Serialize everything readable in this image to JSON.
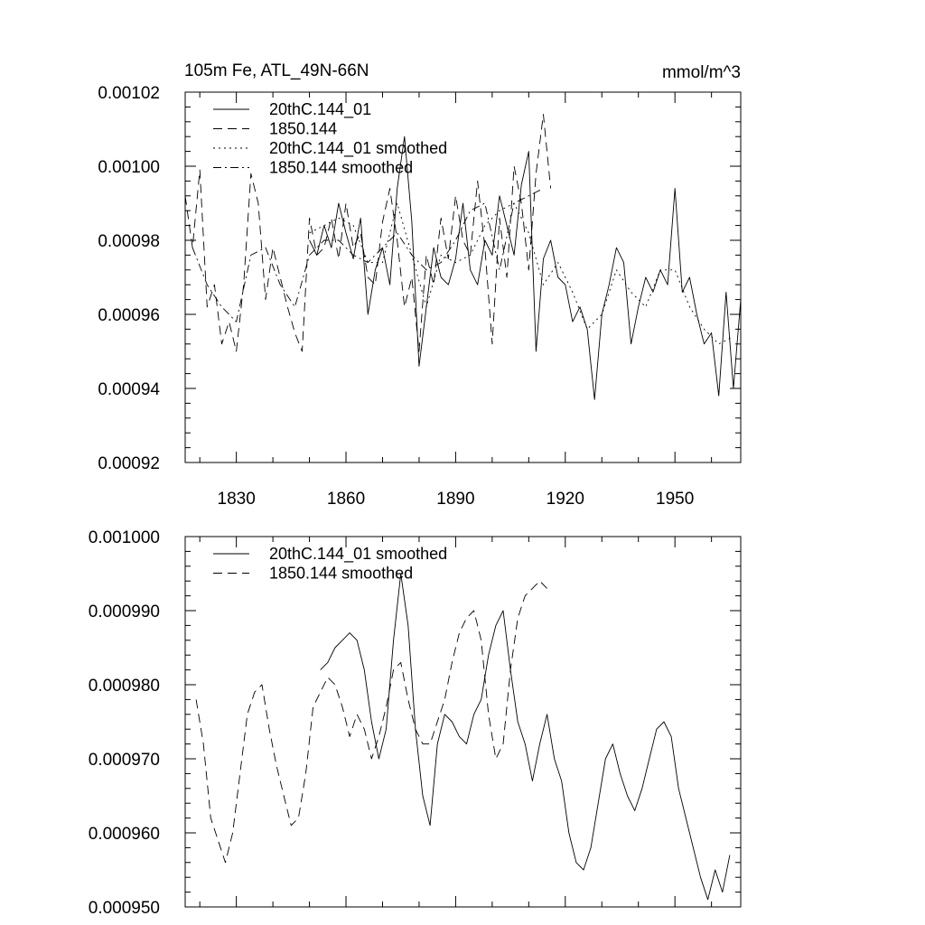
{
  "chart_data": [
    {
      "type": "line",
      "title": "105m Fe, ATL_49N-66N",
      "units_label": "mmol/m^3",
      "xlim": [
        1816,
        1968
      ],
      "ylim": [
        0.00092,
        0.00102
      ],
      "x_ticks": [
        1830,
        1860,
        1890,
        1920,
        1950
      ],
      "x_tick_labels": [
        "1830",
        "1860",
        "1890",
        "1920",
        "1950"
      ],
      "y_ticks": [
        0.00092,
        0.00094,
        0.00096,
        0.00098,
        0.001,
        0.00102
      ],
      "y_tick_labels": [
        "0.00092",
        "0.00094",
        "0.00096",
        "0.00098",
        "0.00100",
        "0.00102"
      ],
      "legend_position": "top-left",
      "series": [
        {
          "name": "20thC.144_01",
          "dash": "solid",
          "x": [
            1850,
            1852,
            1854,
            1856,
            1858,
            1860,
            1862,
            1864,
            1866,
            1868,
            1870,
            1872,
            1874,
            1876,
            1878,
            1880,
            1882,
            1884,
            1886,
            1888,
            1890,
            1892,
            1894,
            1896,
            1898,
            1900,
            1902,
            1904,
            1906,
            1908,
            1910,
            1912,
            1914,
            1916,
            1918,
            1920,
            1922,
            1924,
            1926,
            1928,
            1930,
            1932,
            1934,
            1936,
            1938,
            1940,
            1942,
            1944,
            1946,
            1948,
            1950,
            1952,
            1954,
            1956,
            1958,
            1960,
            1962,
            1964,
            1966,
            1968
          ],
          "y": [
            0.00098,
            0.000976,
            0.000984,
            0.000978,
            0.00099,
            0.000982,
            0.000975,
            0.000986,
            0.00096,
            0.000972,
            0.000978,
            0.000968,
            0.000994,
            0.001008,
            0.000985,
            0.000946,
            0.000962,
            0.000978,
            0.00097,
            0.000968,
            0.000975,
            0.00099,
            0.000972,
            0.000968,
            0.00098,
            0.000976,
            0.000992,
            0.000984,
            0.000976,
            0.000995,
            0.001004,
            0.00095,
            0.000975,
            0.00098,
            0.00097,
            0.000968,
            0.000958,
            0.000962,
            0.000956,
            0.000937,
            0.00096,
            0.000968,
            0.000978,
            0.000974,
            0.000952,
            0.000962,
            0.00097,
            0.000966,
            0.000972,
            0.000968,
            0.000994,
            0.000966,
            0.00097,
            0.00096,
            0.000952,
            0.000955,
            0.000938,
            0.000966,
            0.00094,
            0.000964
          ]
        },
        {
          "name": "1850.144",
          "dash": "long-dash",
          "x": [
            1816,
            1818,
            1820,
            1822,
            1824,
            1826,
            1828,
            1830,
            1832,
            1834,
            1836,
            1838,
            1840,
            1842,
            1844,
            1846,
            1848,
            1850,
            1852,
            1854,
            1856,
            1858,
            1860,
            1862,
            1864,
            1866,
            1868,
            1870,
            1872,
            1874,
            1876,
            1878,
            1880,
            1882,
            1884,
            1886,
            1888,
            1890,
            1892,
            1894,
            1896,
            1898,
            1900,
            1902,
            1904,
            1906,
            1908,
            1910,
            1912,
            1914,
            1916
          ],
          "y": [
            0.000992,
            0.000978,
            0.000999,
            0.000962,
            0.000968,
            0.000952,
            0.000958,
            0.00095,
            0.000968,
            0.000998,
            0.00099,
            0.000964,
            0.000978,
            0.00097,
            0.000962,
            0.000955,
            0.00095,
            0.000986,
            0.000976,
            0.000978,
            0.000986,
            0.000975,
            0.00099,
            0.000978,
            0.000982,
            0.00097,
            0.000968,
            0.000985,
            0.000994,
            0.00098,
            0.000962,
            0.00097,
            0.00095,
            0.000976,
            0.000968,
            0.000986,
            0.000975,
            0.000992,
            0.00098,
            0.000976,
            0.000996,
            0.000978,
            0.000952,
            0.000986,
            0.00097,
            0.001,
            0.00099,
            0.000972,
            0.000998,
            0.001014,
            0.000994
          ]
        },
        {
          "name": "20thC.144_01 smoothed",
          "dash": "dot",
          "x": [
            1850,
            1854,
            1858,
            1862,
            1866,
            1870,
            1874,
            1878,
            1882,
            1886,
            1890,
            1894,
            1898,
            1902,
            1906,
            1910,
            1914,
            1918,
            1922,
            1926,
            1930,
            1934,
            1938,
            1942,
            1946,
            1950,
            1954,
            1958,
            1962,
            1966
          ],
          "y": [
            0.000982,
            0.000984,
            0.000986,
            0.000984,
            0.000974,
            0.000974,
            0.00099,
            0.000976,
            0.000962,
            0.000976,
            0.000974,
            0.000976,
            0.000984,
            0.000988,
            0.00099,
            0.000982,
            0.000968,
            0.000974,
            0.000966,
            0.000956,
            0.00096,
            0.000972,
            0.000966,
            0.000962,
            0.000972,
            0.000972,
            0.000962,
            0.000956,
            0.000952,
            0.000954
          ]
        },
        {
          "name": "1850.144 smoothed",
          "dash": "dash-dot",
          "x": [
            1818,
            1822,
            1826,
            1830,
            1834,
            1838,
            1842,
            1846,
            1850,
            1854,
            1858,
            1862,
            1866,
            1870,
            1874,
            1878,
            1882,
            1886,
            1890,
            1894,
            1898,
            1902,
            1906,
            1910,
            1914
          ],
          "y": [
            0.000978,
            0.000968,
            0.000962,
            0.000958,
            0.000976,
            0.000978,
            0.000968,
            0.000962,
            0.000976,
            0.00098,
            0.00098,
            0.000976,
            0.000974,
            0.000978,
            0.000982,
            0.000976,
            0.000972,
            0.000974,
            0.00098,
            0.000988,
            0.00099,
            0.000972,
            0.00099,
            0.000992,
            0.000994
          ]
        }
      ]
    },
    {
      "type": "line",
      "title": "",
      "xlim": [
        1816,
        1968
      ],
      "ylim": [
        0.00095,
        0.001
      ],
      "x_ticks": [
        1830,
        1860,
        1890,
        1920,
        1950
      ],
      "y_ticks": [
        0.00095,
        0.00096,
        0.00097,
        0.00098,
        0.00099,
        0.001
      ],
      "y_tick_labels": [
        "0.000950",
        "0.000960",
        "0.000970",
        "0.000980",
        "0.000990",
        "0.001000"
      ],
      "legend_position": "top-left",
      "series": [
        {
          "name": "20thC.144_01 smoothed",
          "dash": "solid",
          "x": [
            1853,
            1855,
            1857,
            1859,
            1861,
            1863,
            1865,
            1867,
            1869,
            1871,
            1873,
            1875,
            1877,
            1879,
            1881,
            1883,
            1885,
            1887,
            1889,
            1891,
            1893,
            1895,
            1897,
            1899,
            1901,
            1903,
            1905,
            1907,
            1909,
            1911,
            1913,
            1915,
            1917,
            1919,
            1921,
            1923,
            1925,
            1927,
            1929,
            1931,
            1933,
            1935,
            1937,
            1939,
            1941,
            1943,
            1945,
            1947,
            1949,
            1951,
            1953,
            1955,
            1957,
            1959,
            1961,
            1963,
            1965
          ],
          "y": [
            0.000982,
            0.000983,
            0.000985,
            0.000986,
            0.000987,
            0.000986,
            0.000982,
            0.000975,
            0.00097,
            0.000974,
            0.000986,
            0.000995,
            0.000988,
            0.000974,
            0.000965,
            0.000961,
            0.000972,
            0.000976,
            0.000975,
            0.000973,
            0.000972,
            0.000976,
            0.000978,
            0.000984,
            0.000988,
            0.00099,
            0.000982,
            0.000975,
            0.000972,
            0.000967,
            0.000972,
            0.000976,
            0.00097,
            0.000967,
            0.00096,
            0.000956,
            0.000955,
            0.000958,
            0.000964,
            0.00097,
            0.000972,
            0.000968,
            0.000965,
            0.000963,
            0.000966,
            0.00097,
            0.000974,
            0.000975,
            0.000973,
            0.000966,
            0.000962,
            0.000958,
            0.000954,
            0.000951,
            0.000955,
            0.000952,
            0.000957
          ]
        },
        {
          "name": "1850.144 smoothed",
          "dash": "long-dash",
          "x": [
            1819,
            1821,
            1823,
            1825,
            1827,
            1829,
            1831,
            1833,
            1835,
            1837,
            1839,
            1841,
            1843,
            1845,
            1847,
            1849,
            1851,
            1853,
            1855,
            1857,
            1859,
            1861,
            1863,
            1865,
            1867,
            1869,
            1871,
            1873,
            1875,
            1877,
            1879,
            1881,
            1883,
            1885,
            1887,
            1889,
            1891,
            1893,
            1895,
            1897,
            1899,
            1901,
            1903,
            1905,
            1907,
            1909,
            1911,
            1913,
            1915
          ],
          "y": [
            0.000978,
            0.000972,
            0.000962,
            0.000959,
            0.000956,
            0.00096,
            0.000968,
            0.000976,
            0.000979,
            0.00098,
            0.000974,
            0.000969,
            0.000965,
            0.000961,
            0.000962,
            0.000968,
            0.000977,
            0.000979,
            0.000981,
            0.00098,
            0.000977,
            0.000973,
            0.000976,
            0.000974,
            0.00097,
            0.000973,
            0.000977,
            0.000982,
            0.000983,
            0.000978,
            0.000974,
            0.000972,
            0.000972,
            0.000975,
            0.000978,
            0.000983,
            0.000987,
            0.000989,
            0.00099,
            0.000986,
            0.000976,
            0.00097,
            0.000972,
            0.000982,
            0.000989,
            0.000992,
            0.000993,
            0.000994,
            0.000993
          ]
        }
      ]
    }
  ]
}
